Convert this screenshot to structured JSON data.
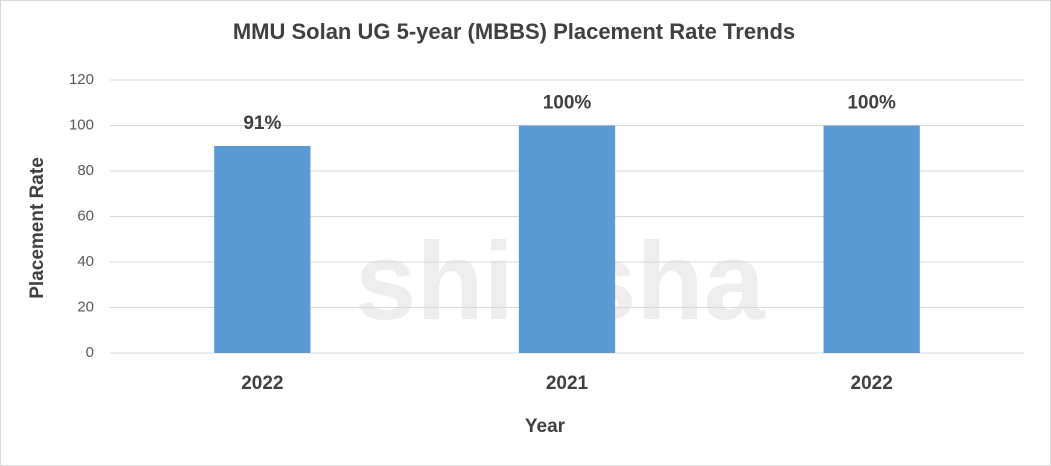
{
  "chart_data": {
    "type": "bar",
    "title": "MMU Solan UG 5-year (MBBS) Placement Rate Trends",
    "x_label": "Year",
    "y_label": "Placement Rate",
    "watermark": "shiksha",
    "categories": [
      "2022",
      "2021",
      "2022"
    ],
    "values": [
      91,
      100,
      100
    ],
    "value_labels": [
      "91%",
      "100%",
      "100%"
    ],
    "color": "#5b9bd5",
    "ylim": [
      0,
      120
    ],
    "yticks": [
      0,
      20,
      40,
      60,
      80,
      100,
      120
    ],
    "grid": true
  }
}
